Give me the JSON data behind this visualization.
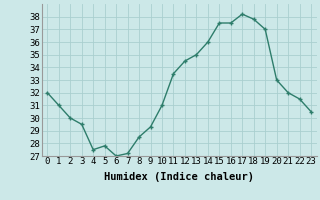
{
  "x": [
    0,
    1,
    2,
    3,
    4,
    5,
    6,
    7,
    8,
    9,
    10,
    11,
    12,
    13,
    14,
    15,
    16,
    17,
    18,
    19,
    20,
    21,
    22,
    23
  ],
  "y": [
    32,
    31,
    30,
    29.5,
    27.5,
    27.8,
    27,
    27.2,
    28.5,
    29.3,
    31,
    33.5,
    34.5,
    35,
    36,
    37.5,
    37.5,
    38.2,
    37.8,
    37,
    33,
    32,
    31.5,
    30.5
  ],
  "line_color": "#2e7d6b",
  "marker": "+",
  "bg_color": "#cce8e8",
  "grid_color": "#aacfcf",
  "xlabel": "Humidex (Indice chaleur)",
  "ylim": [
    27,
    39
  ],
  "xlim": [
    -0.5,
    23.5
  ],
  "yticks": [
    27,
    28,
    29,
    30,
    31,
    32,
    33,
    34,
    35,
    36,
    37,
    38
  ],
  "xticks": [
    0,
    1,
    2,
    3,
    4,
    5,
    6,
    7,
    8,
    9,
    10,
    11,
    12,
    13,
    14,
    15,
    16,
    17,
    18,
    19,
    20,
    21,
    22,
    23
  ],
  "xlabel_fontsize": 7.5,
  "tick_fontsize": 6.5,
  "line_width": 1.0,
  "marker_size": 3.5
}
